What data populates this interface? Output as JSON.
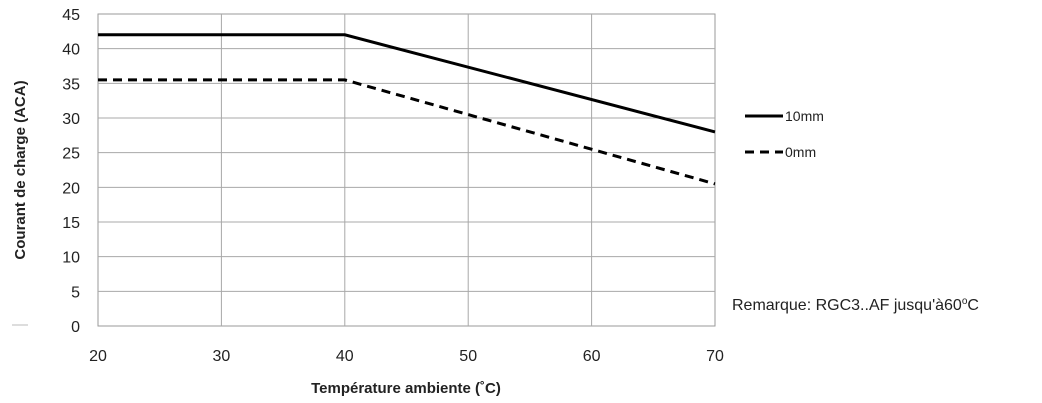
{
  "chart_data": {
    "type": "line",
    "title": "",
    "xlabel": "Température ambiente (˚C)",
    "ylabel": "Courant de charge (ACA)",
    "xlim": [
      20,
      70
    ],
    "ylim": [
      0,
      45
    ],
    "x_ticks": [
      20,
      30,
      40,
      50,
      60,
      70
    ],
    "y_ticks": [
      0,
      5,
      10,
      15,
      20,
      25,
      30,
      35,
      40,
      45
    ],
    "grid": true,
    "legend_position": "right",
    "series": [
      {
        "name": "10mm",
        "style": "solid",
        "color": "#000000",
        "x": [
          20,
          40,
          70
        ],
        "y": [
          42,
          42,
          28
        ]
      },
      {
        "name": "0mm",
        "style": "dashed",
        "color": "#000000",
        "x": [
          20,
          40,
          70
        ],
        "y": [
          35.5,
          35.5,
          20.5
        ]
      }
    ],
    "annotation": "Remarque: RGC3..AF jusqu'à60",
    "annotation_superscript": "o",
    "annotation_unit": "C"
  }
}
